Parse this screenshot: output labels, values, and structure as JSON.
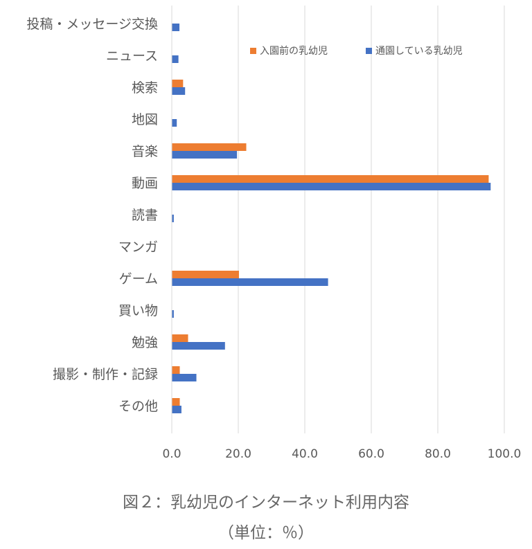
{
  "caption": {
    "title": "図２：乳幼児のインターネット利用内容",
    "unit": "（単位：％）"
  },
  "chart_data": {
    "type": "bar",
    "orientation": "horizontal",
    "categories": [
      "投稿・メッセージ交換",
      "ニュース",
      "検索",
      "地図",
      "音楽",
      "動画",
      "読書",
      "マンガ",
      "ゲーム",
      "買い物",
      "勉強",
      "撮影・制作・記録",
      "その他"
    ],
    "series": [
      {
        "name": "入園前の乳幼児",
        "color": "#ed7d31",
        "values": [
          0,
          0,
          3.4,
          0,
          22.4,
          95.3,
          0,
          0,
          20.2,
          0,
          4.9,
          2.4,
          2.4
        ]
      },
      {
        "name": "通園している乳幼児",
        "color": "#4472c4",
        "values": [
          2.3,
          2.0,
          4.0,
          1.5,
          19.6,
          95.9,
          0.6,
          0,
          47.0,
          0.6,
          16.0,
          7.4,
          2.9
        ]
      }
    ],
    "xlim": [
      0,
      100
    ],
    "xticks": [
      "0.0",
      "20.0",
      "40.0",
      "60.0",
      "80.0",
      "100.0"
    ],
    "grid": true,
    "legend": "top-right"
  }
}
